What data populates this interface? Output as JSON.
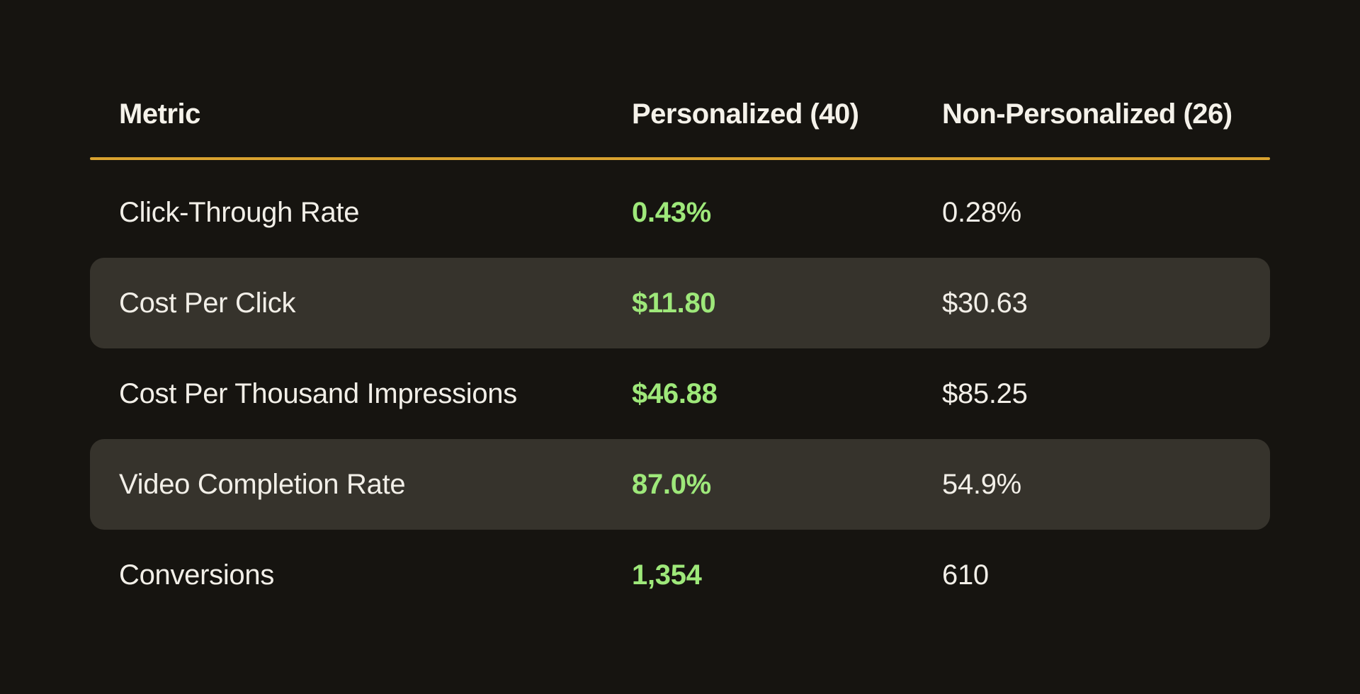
{
  "chart_data": {
    "type": "table",
    "columns": [
      "Metric",
      "Personalized (40)",
      "Non-Personalized (26)"
    ],
    "metrics": [
      "Click-Through Rate",
      "Cost Per Click",
      "Cost Per Thousand Impressions",
      "Video Completion Rate",
      "Conversions"
    ],
    "series": [
      {
        "name": "Personalized (40)",
        "sample_size": 40,
        "display_values": [
          "0.43%",
          "$11.80",
          "$46.88",
          "87.0%",
          "1,354"
        ],
        "values": [
          0.43,
          11.8,
          46.88,
          87.0,
          1354
        ]
      },
      {
        "name": "Non-Personalized (26)",
        "sample_size": 26,
        "display_values": [
          "0.28%",
          "$30.63",
          "$85.25",
          "54.9%",
          "610"
        ],
        "values": [
          0.28,
          30.63,
          85.25,
          54.9,
          610
        ]
      }
    ],
    "rows": [
      {
        "metric": "Click-Through Rate",
        "personalized": "0.43%",
        "non_personalized": "0.28%"
      },
      {
        "metric": "Cost Per Click",
        "personalized": "$11.80",
        "non_personalized": "$30.63"
      },
      {
        "metric": "Cost Per Thousand Impressions",
        "personalized": "$46.88",
        "non_personalized": "$85.25"
      },
      {
        "metric": "Video Completion Rate",
        "personalized": "87.0%",
        "non_personalized": "54.9%"
      },
      {
        "metric": "Conversions",
        "personalized": "1,354",
        "non_personalized": "610"
      }
    ],
    "layout_hints": {
      "highlight_column": "Personalized (40)",
      "zebra_row_indexes": [
        1,
        3
      ],
      "legend": "none",
      "grid": "off"
    }
  },
  "colors": {
    "background": "#161410",
    "zebra_row": "#36332C",
    "header_rule": "#D9A22F",
    "text": "#F2EFE8",
    "header_text": "#F5F2EA",
    "highlight_green": "#9EE87A"
  }
}
